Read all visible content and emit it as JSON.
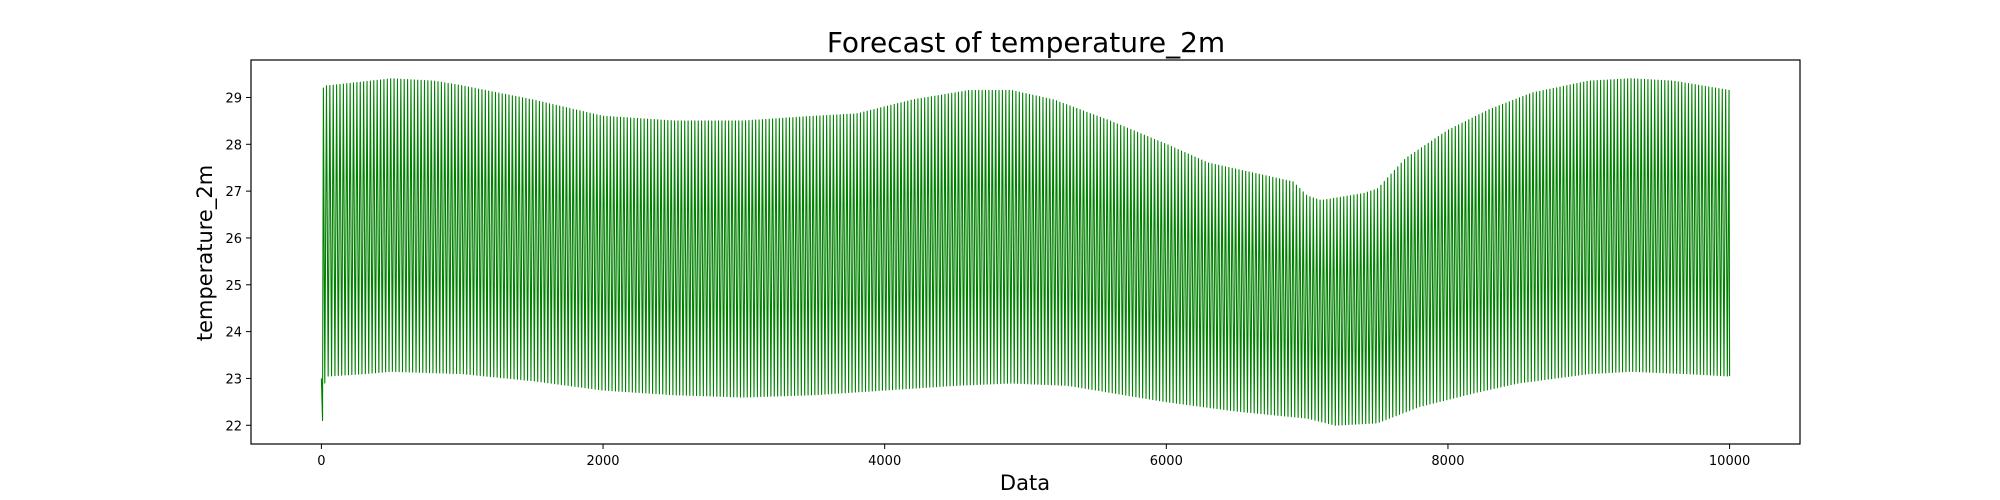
{
  "chart_data": {
    "type": "line",
    "title": "Forecast of temperature_2m",
    "xlabel": "Data",
    "ylabel": "temperature_2m",
    "xlim": [
      -500,
      10500
    ],
    "ylim": [
      21.6,
      29.8
    ],
    "xticks": [
      0,
      2000,
      4000,
      6000,
      8000,
      10000
    ],
    "yticks": [
      22,
      23,
      24,
      25,
      26,
      27,
      28,
      29
    ],
    "grid": false,
    "legend": "none",
    "series": [
      {
        "color": "#008000",
        "cycle_length": 24,
        "x_start": 0,
        "x_end": 10000,
        "initial_points": [
          [
            0,
            23.0
          ],
          [
            8,
            22.1
          ],
          [
            14,
            29.2
          ],
          [
            24,
            22.9
          ]
        ],
        "upper_envelope": [
          [
            50,
            29.25
          ],
          [
            200,
            29.3
          ],
          [
            500,
            29.4
          ],
          [
            800,
            29.35
          ],
          [
            1000,
            29.25
          ],
          [
            1500,
            28.95
          ],
          [
            2000,
            28.6
          ],
          [
            2500,
            28.5
          ],
          [
            3000,
            28.5
          ],
          [
            3500,
            28.6
          ],
          [
            3800,
            28.65
          ],
          [
            4200,
            28.95
          ],
          [
            4600,
            29.15
          ],
          [
            4900,
            29.15
          ],
          [
            5200,
            28.95
          ],
          [
            5600,
            28.5
          ],
          [
            6000,
            28.0
          ],
          [
            6300,
            27.6
          ],
          [
            6600,
            27.4
          ],
          [
            6900,
            27.2
          ],
          [
            7000,
            26.9
          ],
          [
            7100,
            26.8
          ],
          [
            7400,
            26.95
          ],
          [
            7500,
            27.05
          ],
          [
            7700,
            27.7
          ],
          [
            8000,
            28.3
          ],
          [
            8300,
            28.75
          ],
          [
            8600,
            29.1
          ],
          [
            9000,
            29.35
          ],
          [
            9300,
            29.4
          ],
          [
            9600,
            29.35
          ],
          [
            10000,
            29.15
          ]
        ],
        "lower_envelope": [
          [
            50,
            23.05
          ],
          [
            300,
            23.1
          ],
          [
            500,
            23.15
          ],
          [
            1000,
            23.1
          ],
          [
            1500,
            22.95
          ],
          [
            2000,
            22.75
          ],
          [
            2500,
            22.65
          ],
          [
            3000,
            22.6
          ],
          [
            3500,
            22.65
          ],
          [
            4000,
            22.75
          ],
          [
            4500,
            22.85
          ],
          [
            4900,
            22.9
          ],
          [
            5300,
            22.85
          ],
          [
            5800,
            22.6
          ],
          [
            6000,
            22.5
          ],
          [
            6500,
            22.3
          ],
          [
            7000,
            22.15
          ],
          [
            7200,
            22.0
          ],
          [
            7500,
            22.05
          ],
          [
            7800,
            22.4
          ],
          [
            8200,
            22.7
          ],
          [
            8500,
            22.9
          ],
          [
            9000,
            23.1
          ],
          [
            9300,
            23.15
          ],
          [
            9700,
            23.1
          ],
          [
            10000,
            23.05
          ]
        ]
      }
    ]
  }
}
